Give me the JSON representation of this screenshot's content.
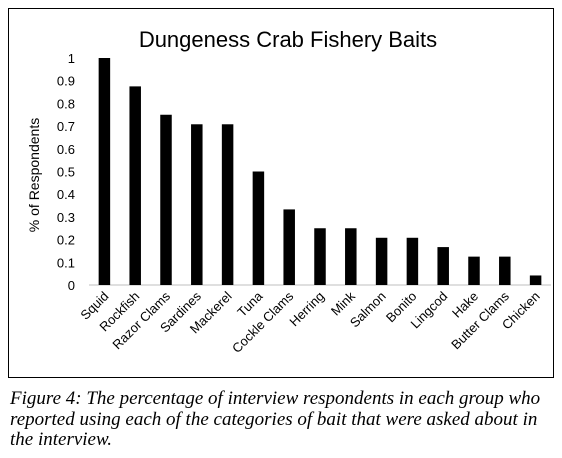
{
  "chart_data": {
    "type": "bar",
    "title": "Dungeness Crab Fishery Baits",
    "xlabel": "",
    "ylabel": "% of Respondents",
    "ylim": [
      0,
      1
    ],
    "yticks": [
      "0",
      "0.1",
      "0.2",
      "0.3",
      "0.4",
      "0.5",
      "0.6",
      "0.7",
      "0.8",
      "0.9",
      "1"
    ],
    "grid": false,
    "categories": [
      "Squid",
      "Rockfish",
      "Razor Clams",
      "Sardines",
      "Mackerel",
      "Tuna",
      "Cockle Clams",
      "Herring",
      "Mink",
      "Salmon",
      "Bonito",
      "Lingcod",
      "Hake",
      "Butter Clams",
      "Chicken"
    ],
    "values": [
      1.0,
      0.875,
      0.75,
      0.708,
      0.708,
      0.5,
      0.333,
      0.25,
      0.25,
      0.208,
      0.208,
      0.167,
      0.125,
      0.125,
      0.042
    ],
    "bar_color": "#000000"
  },
  "caption": "Figure 4: The percentage of interview respondents in each group who reported using each of the categories of bait that were asked about in the interview."
}
